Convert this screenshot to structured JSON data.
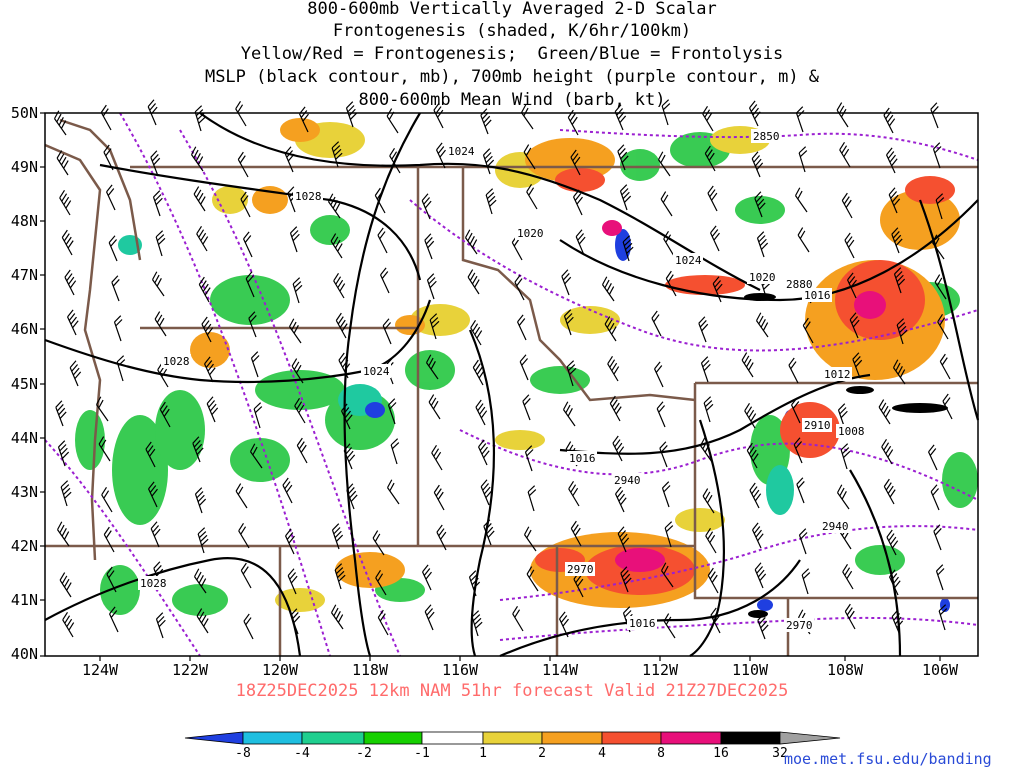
{
  "title": {
    "lines": [
      "800-600mb Vertically Averaged 2-D Scalar",
      "Frontogenesis (shaded, K/6hr/100km)",
      "Yellow/Red = Frontogenesis;  Green/Blue = Frontolysis",
      "MSLP (black contour, mb), 700mb height (purple contour, m) &",
      "800-600mb Mean Wind (barb, kt)"
    ]
  },
  "axes": {
    "latitude_labels": [
      "50N",
      "49N",
      "48N",
      "47N",
      "46N",
      "45N",
      "44N",
      "43N",
      "42N",
      "41N",
      "40N"
    ],
    "longitude_labels": [
      "124W",
      "122W",
      "120W",
      "118W",
      "116W",
      "114W",
      "112W",
      "110W",
      "108W",
      "106W"
    ]
  },
  "footer": {
    "run_info": "18Z25DEC2025 12km NAM 51hr forecast Valid 21Z27DEC2025",
    "credit": "moe.met.fsu.edu/banding"
  },
  "colorbar": {
    "labels": [
      "-8",
      "-4",
      "-2",
      "-1",
      "1",
      "2",
      "4",
      "8",
      "16",
      "32"
    ],
    "colors": [
      "#1f3fe0",
      "#1fbfe0",
      "#1fcf8f",
      "#27c840",
      "#15d000",
      "#ffffff",
      "#e8d23a",
      "#f5a020",
      "#f55030",
      "#e8107a",
      "#000000",
      "#a0a0a0"
    ]
  },
  "mslp_labels": [
    "1024",
    "1028",
    "1020",
    "1028",
    "1024",
    "1024",
    "1020",
    "1016",
    "1016",
    "1028",
    "1012",
    "1008",
    "1016"
  ],
  "height_labels": [
    "2850",
    "2880",
    "2910",
    "2940",
    "2940",
    "2970",
    "2970"
  ]
}
